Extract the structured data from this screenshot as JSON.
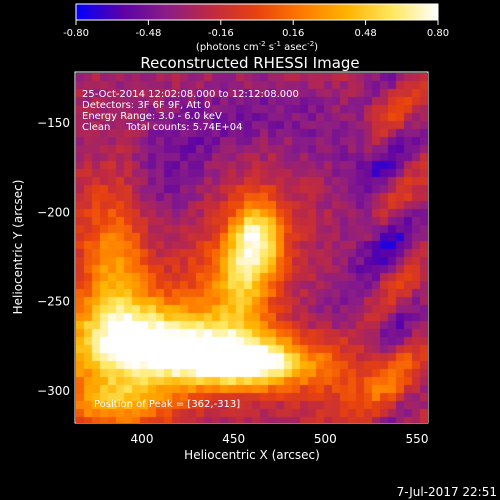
{
  "chart_data": {
    "type": "heatmap",
    "title": "Reconstructed RHESSI Image",
    "xlabel": "Heliocentric X (arcsec)",
    "ylabel": "Heliocentric Y (arcsec)",
    "xlim": [
      364,
      556
    ],
    "ylim": [
      -318,
      -122
    ],
    "xticks": [
      400,
      450,
      500,
      550
    ],
    "yticks": [
      -150,
      -200,
      -250,
      -300
    ],
    "colorbar": {
      "min": -0.8,
      "max": 0.8,
      "ticks": [
        "-0.80",
        "-0.48",
        "-0.16",
        "0.16",
        "0.48",
        "0.80"
      ],
      "label_main": "(photons cm",
      "label_sup1": "-2",
      "label_mid1": " s",
      "label_sup2": "-1",
      "label_mid2": " asec",
      "label_sup3": "-2",
      "label_end": ")",
      "colormap": [
        "#0000ff",
        "#5a00a8",
        "#8a1d86",
        "#c02a40",
        "#e8420e",
        "#ff7a00",
        "#ffb400",
        "#ffe860",
        "#ffffff"
      ]
    },
    "annotations": [
      "25-Oct-2014 12:02:08.000 to 12:12:08.000",
      "Detectors: 3F 6F 9F, Att 0",
      "Energy Range: 3.0 - 6.0 keV",
      "Clean     Total counts: 5.74E+04"
    ],
    "peak_label": "Position of Peak = [362,-313]",
    "peak": [
      362,
      -313
    ],
    "sources": [
      {
        "x": 400,
        "y": -290,
        "value": 0.78
      },
      {
        "x": 455,
        "y": -220,
        "value": 0.65
      },
      {
        "x": 445,
        "y": -300,
        "value": 0.72
      }
    ]
  },
  "footer": {
    "timestamp": "7-Jul-2017 22:51"
  }
}
